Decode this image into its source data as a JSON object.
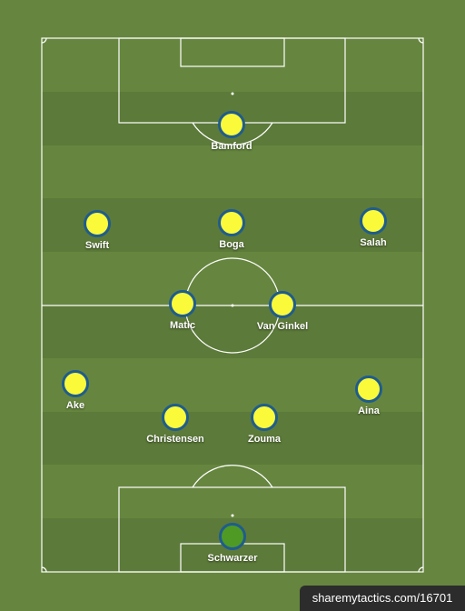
{
  "colors": {
    "grass_light": "#66863f",
    "grass_dark": "#5c7a39",
    "lines": "#ffffff",
    "outfield_kit": "#fafa3a",
    "keeper_kit": "#4f9a24",
    "kit_border": "#1f5c8e"
  },
  "players": [
    {
      "name": "Bamford",
      "role": "outfield"
    },
    {
      "name": "Swift",
      "role": "outfield"
    },
    {
      "name": "Boga",
      "role": "outfield"
    },
    {
      "name": "Salah",
      "role": "outfield"
    },
    {
      "name": "Matic",
      "role": "outfield"
    },
    {
      "name": "Van Ginkel",
      "role": "outfield"
    },
    {
      "name": "Ake",
      "role": "outfield"
    },
    {
      "name": "Aina",
      "role": "outfield"
    },
    {
      "name": "Christensen",
      "role": "outfield"
    },
    {
      "name": "Zouma",
      "role": "outfield"
    },
    {
      "name": "Schwarzer",
      "role": "keeper"
    }
  ],
  "watermark": "sharemytactics.com/16701"
}
